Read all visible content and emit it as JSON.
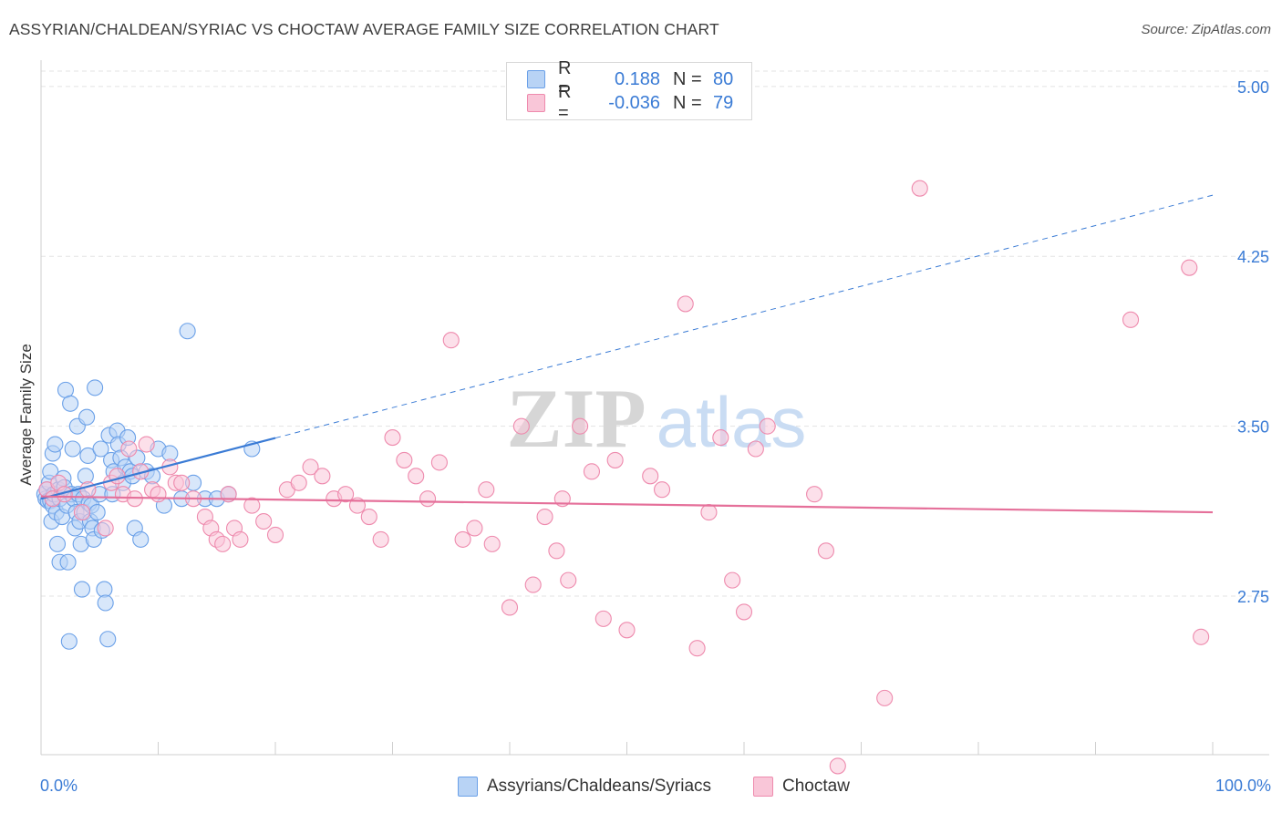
{
  "title": "ASSYRIAN/CHALDEAN/SYRIAC VS CHOCTAW AVERAGE FAMILY SIZE CORRELATION CHART",
  "source": "Source: ZipAtlas.com",
  "watermark": {
    "zip": "ZIP",
    "atlas": "atlas"
  },
  "legend": {
    "rows": [
      {
        "r_label": "R =",
        "r_value": "0.188",
        "n_label": "N =",
        "n_value": "80",
        "color": "#6aa0e8",
        "fill": "#b8d3f5"
      },
      {
        "r_label": "R =",
        "r_value": "-0.036",
        "n_label": "N =",
        "n_value": "79",
        "color": "#ee8aad",
        "fill": "#f9c6d8"
      }
    ]
  },
  "x_axis": {
    "min_label": "0.0%",
    "max_label": "100.0%"
  },
  "bottom_legend": [
    {
      "label": "Assyrians/Chaldeans/Syriacs",
      "color": "#6aa0e8",
      "fill": "#b8d3f5"
    },
    {
      "label": "Choctaw",
      "color": "#ee8aad",
      "fill": "#f9c6d8"
    }
  ],
  "chart_data": {
    "type": "scatter",
    "title": "ASSYRIAN/CHALDEAN/SYRIAC VS CHOCTAW AVERAGE FAMILY SIZE CORRELATION CHART",
    "xlabel": "",
    "ylabel": "Average Family Size",
    "xlim": [
      0,
      100
    ],
    "ylim": [
      2.05,
      5.1
    ],
    "y_ticks": [
      2.75,
      3.5,
      4.25,
      5.0
    ],
    "y_tick_labels": [
      "2.75",
      "3.50",
      "4.25",
      "5.00"
    ],
    "grid": true,
    "series": [
      {
        "name": "Assyrians/Chaldeans/Syriacs",
        "color": "#6aa0e8",
        "fill": "#b8d3f5",
        "trend": {
          "x0": 0,
          "y0": 3.18,
          "x1": 100,
          "y1": 4.52,
          "solid_until": 20
        },
        "points": [
          [
            0.3,
            3.2
          ],
          [
            0.4,
            3.18
          ],
          [
            0.5,
            3.22
          ],
          [
            0.6,
            3.17
          ],
          [
            0.7,
            3.25
          ],
          [
            0.8,
            3.3
          ],
          [
            0.8,
            3.17
          ],
          [
            0.9,
            3.08
          ],
          [
            1.0,
            3.38
          ],
          [
            1.0,
            3.15
          ],
          [
            1.1,
            3.2
          ],
          [
            1.2,
            3.42
          ],
          [
            1.3,
            3.12
          ],
          [
            1.4,
            2.98
          ],
          [
            1.5,
            3.22
          ],
          [
            1.6,
            3.18
          ],
          [
            1.6,
            2.9
          ],
          [
            1.8,
            3.1
          ],
          [
            1.9,
            3.27
          ],
          [
            2.0,
            3.23
          ],
          [
            2.1,
            3.66
          ],
          [
            2.2,
            3.15
          ],
          [
            2.3,
            2.9
          ],
          [
            2.4,
            2.55
          ],
          [
            2.5,
            3.6
          ],
          [
            2.6,
            3.2
          ],
          [
            2.7,
            3.4
          ],
          [
            2.8,
            3.18
          ],
          [
            2.9,
            3.05
          ],
          [
            3.0,
            3.12
          ],
          [
            3.1,
            3.5
          ],
          [
            3.2,
            3.2
          ],
          [
            3.3,
            3.08
          ],
          [
            3.4,
            2.98
          ],
          [
            3.5,
            2.78
          ],
          [
            3.6,
            3.18
          ],
          [
            3.7,
            3.12
          ],
          [
            3.8,
            3.28
          ],
          [
            3.9,
            3.54
          ],
          [
            4.0,
            3.37
          ],
          [
            4.1,
            3.16
          ],
          [
            4.2,
            3.08
          ],
          [
            4.3,
            3.15
          ],
          [
            4.4,
            3.05
          ],
          [
            4.5,
            3.0
          ],
          [
            4.6,
            3.67
          ],
          [
            4.8,
            3.12
          ],
          [
            5.0,
            3.2
          ],
          [
            5.1,
            3.4
          ],
          [
            5.2,
            3.04
          ],
          [
            5.4,
            2.78
          ],
          [
            5.5,
            2.72
          ],
          [
            5.7,
            2.56
          ],
          [
            5.8,
            3.46
          ],
          [
            6.0,
            3.35
          ],
          [
            6.1,
            3.2
          ],
          [
            6.2,
            3.3
          ],
          [
            6.5,
            3.48
          ],
          [
            6.6,
            3.42
          ],
          [
            6.8,
            3.36
          ],
          [
            7.0,
            3.25
          ],
          [
            7.2,
            3.32
          ],
          [
            7.4,
            3.45
          ],
          [
            7.6,
            3.3
          ],
          [
            7.8,
            3.28
          ],
          [
            8.0,
            3.05
          ],
          [
            8.2,
            3.36
          ],
          [
            8.5,
            3.0
          ],
          [
            9.0,
            3.3
          ],
          [
            9.5,
            3.28
          ],
          [
            10.0,
            3.4
          ],
          [
            10.5,
            3.15
          ],
          [
            11.0,
            3.38
          ],
          [
            12.0,
            3.18
          ],
          [
            12.5,
            3.92
          ],
          [
            13.0,
            3.25
          ],
          [
            14.0,
            3.18
          ],
          [
            15.0,
            3.18
          ],
          [
            16.0,
            3.2
          ],
          [
            18.0,
            3.4
          ]
        ]
      },
      {
        "name": "Choctaw",
        "color": "#ee8aad",
        "fill": "#f9c6d8",
        "trend": {
          "x0": 0,
          "y0": 3.19,
          "x1": 100,
          "y1": 3.12
        },
        "points": [
          [
            0.5,
            3.22
          ],
          [
            1.0,
            3.18
          ],
          [
            1.5,
            3.25
          ],
          [
            2.0,
            3.2
          ],
          [
            3.5,
            3.12
          ],
          [
            4.0,
            3.22
          ],
          [
            5.5,
            3.05
          ],
          [
            6.0,
            3.25
          ],
          [
            6.5,
            3.28
          ],
          [
            7.0,
            3.2
          ],
          [
            7.5,
            3.4
          ],
          [
            8.0,
            3.18
          ],
          [
            8.5,
            3.3
          ],
          [
            9.0,
            3.42
          ],
          [
            9.5,
            3.22
          ],
          [
            10.0,
            3.2
          ],
          [
            11.0,
            3.32
          ],
          [
            11.5,
            3.25
          ],
          [
            12.0,
            3.25
          ],
          [
            13.0,
            3.18
          ],
          [
            14.0,
            3.1
          ],
          [
            14.5,
            3.05
          ],
          [
            15.0,
            3.0
          ],
          [
            15.5,
            2.98
          ],
          [
            16.0,
            3.2
          ],
          [
            16.5,
            3.05
          ],
          [
            17.0,
            3.0
          ],
          [
            18.0,
            3.15
          ],
          [
            19.0,
            3.08
          ],
          [
            20.0,
            3.02
          ],
          [
            21.0,
            3.22
          ],
          [
            22.0,
            3.25
          ],
          [
            23.0,
            3.32
          ],
          [
            24.0,
            3.28
          ],
          [
            25.0,
            3.18
          ],
          [
            26.0,
            3.2
          ],
          [
            27.0,
            3.15
          ],
          [
            28.0,
            3.1
          ],
          [
            29.0,
            3.0
          ],
          [
            30.0,
            3.45
          ],
          [
            31.0,
            3.35
          ],
          [
            32.0,
            3.28
          ],
          [
            33.0,
            3.18
          ],
          [
            34.0,
            3.34
          ],
          [
            35.0,
            3.88
          ],
          [
            36.0,
            3.0
          ],
          [
            37.0,
            3.05
          ],
          [
            38.0,
            3.22
          ],
          [
            38.5,
            2.98
          ],
          [
            40.0,
            2.7
          ],
          [
            41.0,
            3.5
          ],
          [
            42.0,
            2.8
          ],
          [
            43.0,
            3.1
          ],
          [
            44.0,
            2.95
          ],
          [
            44.5,
            3.18
          ],
          [
            45.0,
            2.82
          ],
          [
            46.0,
            3.5
          ],
          [
            47.0,
            3.3
          ],
          [
            48.0,
            2.65
          ],
          [
            49.0,
            3.35
          ],
          [
            50.0,
            2.6
          ],
          [
            52.0,
            3.28
          ],
          [
            53.0,
            3.22
          ],
          [
            55.0,
            4.04
          ],
          [
            56.0,
            2.52
          ],
          [
            57.0,
            3.12
          ],
          [
            58.0,
            3.45
          ],
          [
            59.0,
            2.82
          ],
          [
            60.0,
            2.68
          ],
          [
            61.0,
            3.4
          ],
          [
            62.0,
            3.5
          ],
          [
            66.0,
            3.2
          ],
          [
            67.0,
            2.95
          ],
          [
            68.0,
            2.0
          ],
          [
            72.0,
            2.3
          ],
          [
            75.0,
            4.55
          ],
          [
            93.0,
            3.97
          ],
          [
            98.0,
            4.2
          ],
          [
            99.0,
            2.57
          ]
        ]
      }
    ]
  }
}
